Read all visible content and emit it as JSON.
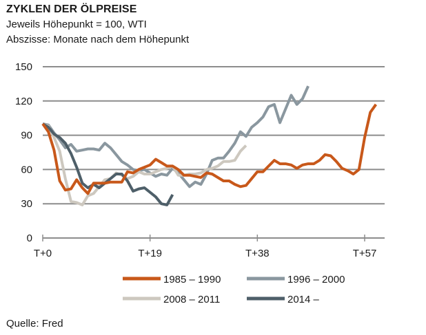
{
  "header": {
    "title": "ZYKLEN DER ÖLPREISE",
    "subtitle1": "Jeweils Höhepunkt = 100, WTI",
    "subtitle2": "Abszisse: Monate nach dem Höhepunkt"
  },
  "source": "Quelle: Fred",
  "chart_data": {
    "type": "line",
    "title": "ZYKLEN DER ÖLPREISE",
    "subtitle": "Jeweils Höhepunkt = 100, WTI; Abszisse: Monate nach dem Höhepunkt",
    "xlabel": "Monate nach dem Höhepunkt",
    "ylabel": "",
    "xlim": [
      0,
      60.5
    ],
    "ylim": [
      0,
      150
    ],
    "grid": true,
    "y_ticks": [
      0,
      30,
      60,
      90,
      120,
      150
    ],
    "y_tick_labels": [
      "0",
      "30",
      "60",
      "90",
      "120",
      "150"
    ],
    "x_ticks": [
      0,
      19,
      38,
      57
    ],
    "x_tick_labels": [
      "T+0",
      "T+19",
      "T+38",
      "T+57"
    ],
    "legend_position": "bottom",
    "series": [
      {
        "name": "1985 – 1990",
        "color": "#c8581a",
        "values": [
          100,
          93,
          77,
          50,
          42,
          43,
          51,
          44,
          39,
          48,
          48,
          48,
          49,
          49,
          49,
          58,
          57,
          60,
          62,
          64,
          69,
          66,
          63,
          63,
          60,
          55,
          55,
          54,
          53,
          57,
          56,
          53,
          50,
          50,
          47,
          45,
          46,
          52,
          58,
          58,
          63,
          68,
          65,
          65,
          64,
          61,
          64,
          65,
          65,
          68,
          73,
          72,
          67,
          61,
          59,
          56,
          60,
          88,
          110,
          117
        ]
      },
      {
        "name": "1996 – 2000",
        "color": "#8a979f",
        "values": [
          100,
          99,
          92,
          86,
          79,
          82,
          76,
          77,
          78,
          78,
          77,
          83,
          79,
          73,
          67,
          64,
          60,
          59,
          60,
          57,
          54,
          56,
          55,
          61,
          57,
          51,
          45,
          49,
          47,
          56,
          68,
          70,
          70,
          76,
          83,
          93,
          89,
          97,
          101,
          106,
          115,
          117,
          101,
          113,
          125,
          117,
          122,
          133
        ]
      },
      {
        "name": "2008 – 2011",
        "color": "#cdc8bf",
        "values": [
          100,
          98,
          88,
          76,
          52,
          32,
          31,
          29,
          37,
          39,
          45,
          51,
          52,
          57,
          55,
          52,
          54,
          58,
          56,
          56,
          58,
          60,
          61,
          63,
          55,
          55,
          56,
          56,
          57,
          60,
          61,
          63,
          67,
          67,
          68,
          76,
          81
        ]
      },
      {
        "name": "2014 –",
        "color": "#4e5f69",
        "values": [
          100,
          97,
          91,
          88,
          83,
          74,
          62,
          48,
          44,
          47,
          44,
          48,
          52,
          56,
          56,
          50,
          41,
          43,
          44,
          40,
          36,
          30,
          29,
          38
        ]
      }
    ]
  }
}
